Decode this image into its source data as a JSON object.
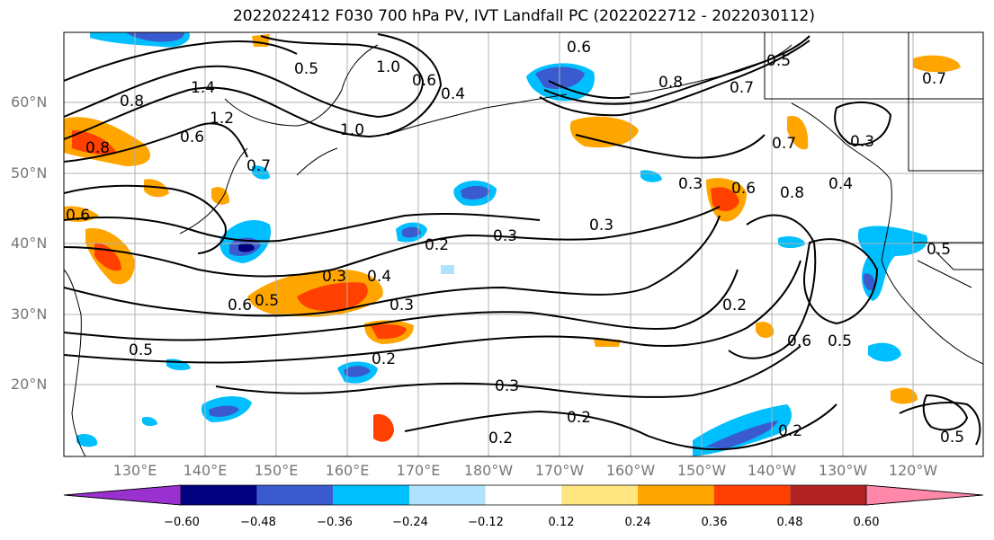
{
  "title": "2022022412 F030 700 hPa PV, IVT Landfall PC (2022022712 - 2022030112)",
  "lat_labels": [
    "60°N",
    "50°N",
    "40°N",
    "30°N",
    "20°N"
  ],
  "lon_labels": [
    "130°E",
    "140°E",
    "150°E",
    "160°E",
    "170°E",
    "180°W",
    "170°W",
    "160°W",
    "150°W",
    "140°W",
    "130°W",
    "120°W"
  ],
  "colorbar": {
    "ticks": [
      "−0.60",
      "−0.48",
      "−0.36",
      "−0.24",
      "−0.12",
      "0.12",
      "0.24",
      "0.36",
      "0.48",
      "0.60"
    ],
    "colors": [
      "#9b30d0",
      "#000080",
      "#3a5bd0",
      "#00bfff",
      "#b0e2ff",
      "#ffffff",
      "#ffe680",
      "#ffa500",
      "#ff4000",
      "#b22222",
      "#ff88aa"
    ]
  },
  "contour_labels": [
    "0.6",
    "0.5",
    "1.0",
    "0.6",
    "0.4",
    "0.8",
    "1.4",
    "1.2",
    "0.6",
    "1.0",
    "0.7",
    "0.6",
    "0.8",
    "0.7",
    "0.5",
    "0.7",
    "0.3",
    "0.8",
    "0.6",
    "0.5",
    "0.3",
    "0.2",
    "0.3",
    "0.3",
    "0.4",
    "0.5",
    "0.6",
    "0.3",
    "0.2",
    "0.5",
    "0.2",
    "0.6",
    "0.5",
    "0.3",
    "0.2",
    "0.2",
    "0.2",
    "0.5",
    "0.7",
    "0.8",
    "0.4",
    "0.3"
  ],
  "colors": {
    "grid": "#b0b0b0",
    "contour": "#000000",
    "coast": "#000000",
    "tick": "#777777"
  }
}
